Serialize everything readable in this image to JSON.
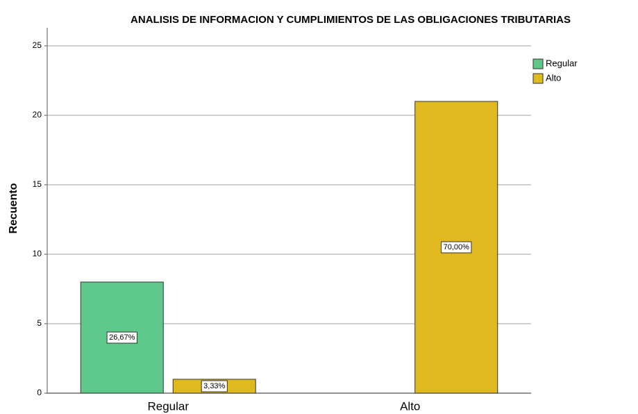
{
  "chart_data": {
    "type": "bar",
    "title": "ANALISIS DE INFORMACION Y CUMPLIMIENTOS DE LAS OBLIGACIONES TRIBUTARIAS",
    "ylabel": "Recuento",
    "categories": [
      "Regular",
      "Alto"
    ],
    "series": [
      {
        "name": "Regular",
        "color": "#5ec88a",
        "values": [
          8,
          null
        ],
        "value_labels": [
          "26,67%",
          null
        ]
      },
      {
        "name": "Alto",
        "color": "#e0b820",
        "values": [
          1,
          21
        ],
        "value_labels": [
          "3,33%",
          "70,00%"
        ]
      }
    ],
    "ylim": [
      0,
      25
    ],
    "yticks": [
      0,
      5,
      10,
      15,
      20,
      25
    ],
    "grid": true,
    "legend": "top-right"
  }
}
